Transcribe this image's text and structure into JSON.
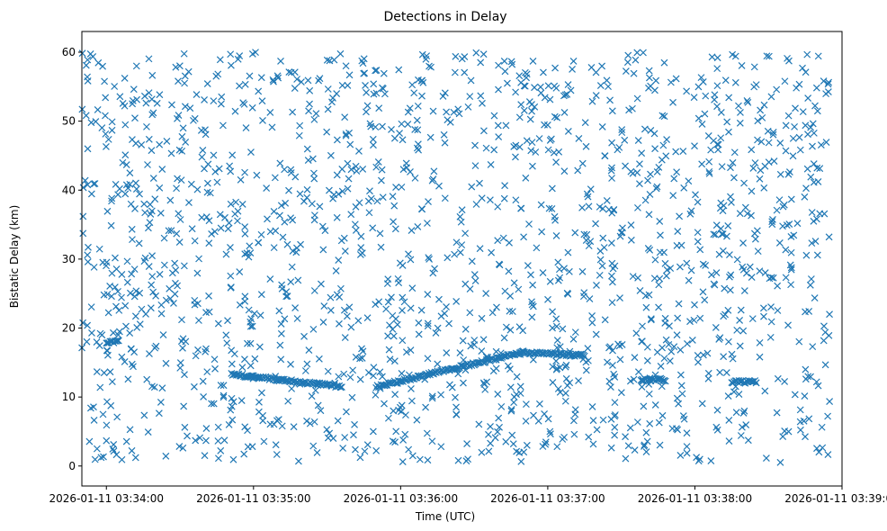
{
  "chart_data": {
    "type": "scatter",
    "title": "Detections in Delay",
    "xlabel": "Time (UTC)",
    "ylabel": "Bistatic Delay (km)",
    "marker": "x",
    "color": "#1f77b4",
    "grid": false,
    "xlim": [
      "2026-01-11 03:33:50",
      "2026-01-11 03:39:00"
    ],
    "ylim": [
      -2.9,
      63
    ],
    "xticks": [
      "2026-01-11 03:34:00",
      "2026-01-11 03:35:00",
      "2026-01-11 03:36:00",
      "2026-01-11 03:37:00",
      "2026-01-11 03:38:00",
      "2026-01-11 03:39:00"
    ],
    "yticks": [
      0,
      10,
      20,
      30,
      40,
      50,
      60
    ],
    "noise_detections": {
      "time_range": [
        "2026-01-11 03:33:50",
        "2026-01-11 03:38:55"
      ],
      "delay_range_km": [
        0.5,
        60
      ],
      "approx_count": 1700
    },
    "track_segments": [
      {
        "time": [
          "2026-01-11 03:34:51",
          "2026-01-11 03:35:36"
        ],
        "delay_km": [
          13.3,
          11.5
        ]
      },
      {
        "time": [
          "2026-01-11 03:35:50",
          "2026-01-11 03:36:50"
        ],
        "delay_km": [
          11.5,
          16.5
        ]
      },
      {
        "time": [
          "2026-01-11 03:36:50",
          "2026-01-11 03:37:15"
        ],
        "delay_km": [
          16.5,
          16.0
        ]
      },
      {
        "time": [
          "2026-01-11 03:37:38",
          "2026-01-11 03:37:48"
        ],
        "delay_km": [
          12.5,
          12.5
        ]
      },
      {
        "time": [
          "2026-01-11 03:38:15",
          "2026-01-11 03:38:25"
        ],
        "delay_km": [
          12.2,
          12.2
        ]
      },
      {
        "time": [
          "2026-01-11 03:34:00",
          "2026-01-11 03:34:05"
        ],
        "delay_km": [
          18.0,
          18.0
        ]
      }
    ]
  }
}
